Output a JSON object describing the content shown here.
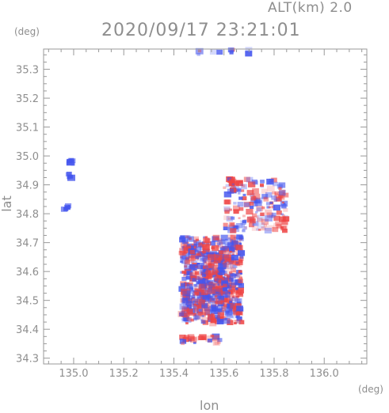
{
  "header": {
    "altitude": "ALT(km)  2.0",
    "datetime": "2020/09/17 23:21:01"
  },
  "axes": {
    "y_unit": "(deg)",
    "x_unit": "(deg)",
    "y_label": "lat",
    "x_label": "lon"
  },
  "colors": {
    "positive": "#ee4444",
    "negative": "#4455ee",
    "frame": "#999999",
    "text": "#8e8e8e"
  },
  "chart_data": {
    "type": "heatmap",
    "xlabel": "lon",
    "ylabel": "lat",
    "xlim": [
      134.88,
      136.17
    ],
    "ylim": [
      34.28,
      35.37
    ],
    "x_ticks": [
      {
        "value": 135.0,
        "label": "135.0"
      },
      {
        "value": 135.2,
        "label": "135.2"
      },
      {
        "value": 135.4,
        "label": "135.4"
      },
      {
        "value": 135.6,
        "label": "135.6"
      },
      {
        "value": 135.8,
        "label": "135.8"
      },
      {
        "value": 136.0,
        "label": "136.0"
      }
    ],
    "y_ticks": [
      {
        "value": 34.3,
        "label": "34.3"
      },
      {
        "value": 34.4,
        "label": "34.4"
      },
      {
        "value": 34.5,
        "label": "34.5"
      },
      {
        "value": 34.6,
        "label": "34.6"
      },
      {
        "value": 34.7,
        "label": "34.7"
      },
      {
        "value": 34.8,
        "label": "34.8"
      },
      {
        "value": 34.9,
        "label": "34.9"
      },
      {
        "value": 35.0,
        "label": "35.0"
      },
      {
        "value": 35.1,
        "label": "35.1"
      },
      {
        "value": 35.2,
        "label": "35.2"
      },
      {
        "value": 35.3,
        "label": "35.3"
      }
    ],
    "regions": [
      {
        "lon": [
          135.43,
          135.67
        ],
        "lat": [
          34.42,
          34.72
        ],
        "density": 0.8
      },
      {
        "lon": [
          135.52,
          135.62
        ],
        "lat": [
          34.52,
          34.65
        ],
        "density": 0.7
      },
      {
        "lon": [
          135.6,
          135.85
        ],
        "lat": [
          34.74,
          34.92
        ],
        "density": 0.35
      },
      {
        "lon": [
          135.43,
          135.6
        ],
        "lat": [
          34.35,
          34.38
        ],
        "density": 0.45
      },
      {
        "lon": [
          135.47,
          135.7
        ],
        "lat": [
          35.35,
          35.37
        ],
        "density": 0.2
      }
    ],
    "clusters": [
      {
        "lon": 134.99,
        "lat": 34.98,
        "sign": -1
      },
      {
        "lon": 134.98,
        "lat": 34.93,
        "sign": -1
      },
      {
        "lon": 134.97,
        "lat": 34.82,
        "sign": -1
      }
    ]
  }
}
